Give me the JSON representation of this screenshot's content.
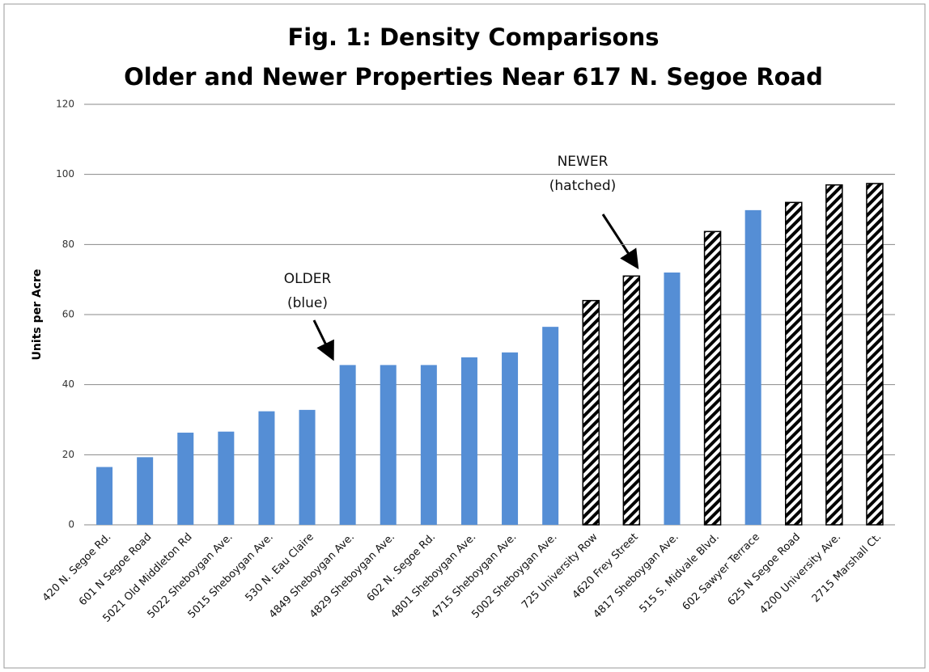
{
  "chart_data": {
    "type": "bar",
    "title": [
      "Fig. 1: Density Comparisons",
      "Older and Newer Properties Near 617 N. Segoe Road"
    ],
    "y_label": "Units per Acre",
    "categories": [
      "420 N. Segoe Rd.",
      "601 N Segoe Road",
      "5021 Old Middleton Rd",
      "5022 Sheboygan Ave.",
      "5015 Sheboygan Ave.",
      "530 N. Eau Claire",
      "4849 Sheboygan Ave.",
      "4829 Sheboygan Ave.",
      "602 N. Segoe Rd.",
      "4801 Sheboygan Ave.",
      "4715 Sheboygan Ave.",
      "5002 Sheboygan Ave.",
      "725 University Row",
      "4620 Frey Street",
      "4817 Sheboygan Ave.",
      "515 S. Midvale Blvd.",
      "602 Sawyer Terrace",
      "625 N Segoe Road",
      "4200 University Ave.",
      "2715 Marshall Ct."
    ],
    "values": [
      16.5,
      19.3,
      26.3,
      26.6,
      32.4,
      32.8,
      45.6,
      45.6,
      45.6,
      47.8,
      49.2,
      56.5,
      64,
      71,
      72,
      83.7,
      89.8,
      92,
      97,
      97.4
    ],
    "hatched": [
      false,
      false,
      false,
      false,
      false,
      false,
      false,
      false,
      false,
      false,
      false,
      false,
      true,
      true,
      false,
      true,
      false,
      true,
      true,
      true
    ],
    "color": "#558ed5",
    "ylim": [
      0,
      120
    ],
    "yticks": [
      0,
      20,
      40,
      60,
      80,
      100,
      120
    ],
    "grid": true,
    "annotations": [
      {
        "lines": [
          "OLDER",
          "(blue)"
        ]
      },
      {
        "lines": [
          "NEWER",
          "(hatched)"
        ]
      }
    ]
  }
}
